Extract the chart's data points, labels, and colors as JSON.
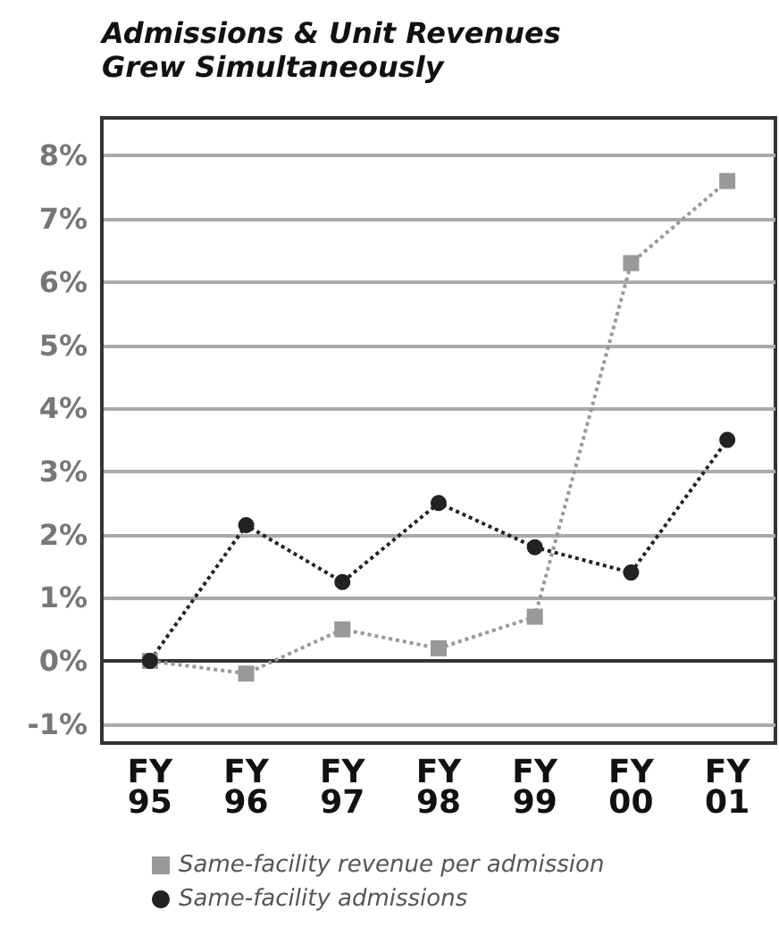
{
  "chart_data": {
    "type": "line",
    "title": "Admissions & Unit Revenues\nGrew Simultaneously",
    "categories": [
      "FY\n95",
      "FY\n96",
      "FY\n97",
      "FY\n98",
      "FY\n99",
      "FY\n00",
      "FY\n01"
    ],
    "series": [
      {
        "name": "Same-facility revenue per admission",
        "color": "#999999",
        "marker": "square",
        "values": [
          0,
          -0.2,
          0.5,
          0.2,
          0.7,
          6.3,
          7.6
        ]
      },
      {
        "name": "Same-facility admissions",
        "color": "#222222",
        "marker": "circle",
        "values": [
          0,
          2.15,
          1.25,
          2.5,
          1.8,
          1.4,
          3.5
        ]
      }
    ],
    "ylim": [
      -1.3,
      8.6
    ],
    "yticks": [
      {
        "value": -1,
        "label": "-1%"
      },
      {
        "value": 0,
        "label": "0%"
      },
      {
        "value": 1,
        "label": "1%"
      },
      {
        "value": 2,
        "label": "2%"
      },
      {
        "value": 3,
        "label": "3%"
      },
      {
        "value": 4,
        "label": "4%"
      },
      {
        "value": 5,
        "label": "5%"
      },
      {
        "value": 6,
        "label": "6%"
      },
      {
        "value": 7,
        "label": "7%"
      },
      {
        "value": 8,
        "label": "8%"
      }
    ],
    "grid": "y",
    "legend": "bottom",
    "line_style": "dotted"
  }
}
